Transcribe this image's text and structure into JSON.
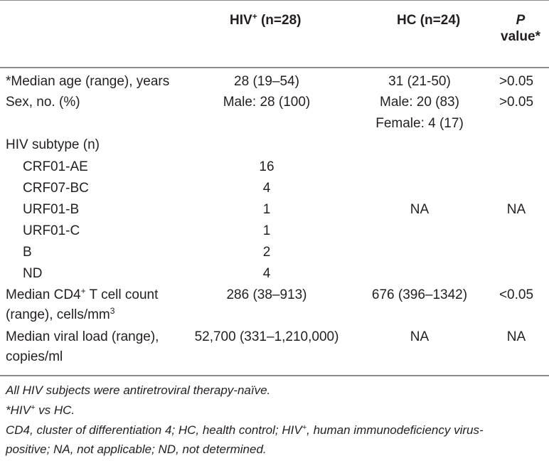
{
  "header": {
    "hiv_col": "HIV",
    "hiv_sup": "+",
    "hiv_n": " (n=28)",
    "hc_col": "HC (n=24)",
    "p_label": "P",
    "p_rest": "value*"
  },
  "rows": {
    "age": {
      "label": "*Median age (range), years",
      "hiv": "28 (19–54)",
      "hc": "31 (21-50)",
      "p": ">0.05"
    },
    "sex": {
      "label": "Sex, no. (%)",
      "hiv": "Male: 28 (100)",
      "hc_male": "Male: 20 (83)",
      "hc_female": "Female: 4 (17)",
      "p": ">0.05"
    },
    "subtype": {
      "label": "HIV subtype (n)",
      "items": [
        {
          "label": "CRF01-AE",
          "hiv": "16"
        },
        {
          "label": "CRF07-BC",
          "hiv": "4"
        },
        {
          "label": "URF01-B",
          "hiv": "1"
        },
        {
          "label": "URF01-C",
          "hiv": "1"
        },
        {
          "label": "B",
          "hiv": "2"
        },
        {
          "label": "ND",
          "hiv": "4"
        }
      ],
      "hc": "NA",
      "p": "NA"
    },
    "cd4": {
      "label_line1a": "Median CD4",
      "label_sup": "+",
      "label_line1b": " T cell count",
      "label_line2a": "(range), cells/mm",
      "label_line2sup": "3",
      "hiv": "286 (38–913)",
      "hc": "676 (396–1342)",
      "p": "<0.05"
    },
    "viral": {
      "label_line1": "Median viral load (range),",
      "label_line2": "copies/ml",
      "hiv": "52,700 (331–1,210,000)",
      "hc": "NA",
      "p": "NA"
    }
  },
  "notes": {
    "n1": "All HIV subjects were antiretroviral therapy-naïve.",
    "n2a": "*HIV",
    "n2sup": "+",
    "n2b": " vs HC.",
    "n3a": "CD4, cluster of differentiation 4; HC, health control; HIV",
    "n3sup": "+",
    "n3b": ", human immunodeficiency virus-",
    "n3line2": "positive; NA, not applicable; ND, not determined."
  }
}
